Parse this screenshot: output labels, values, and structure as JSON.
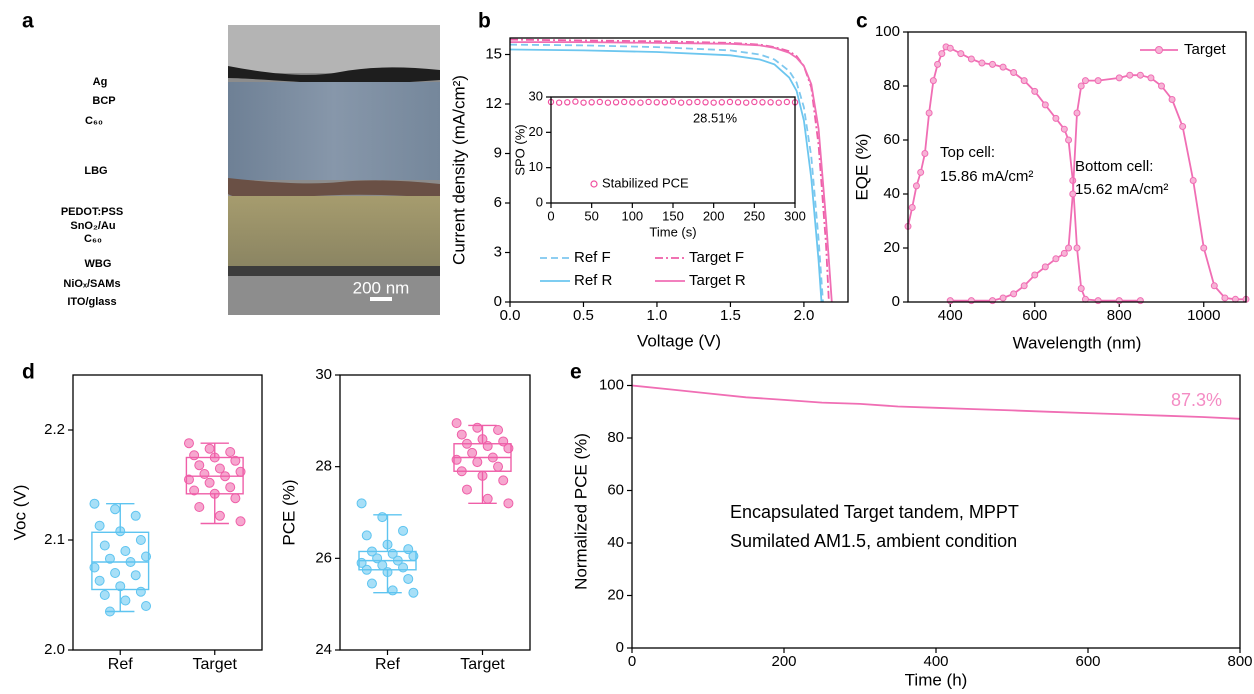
{
  "panel_a": {
    "panel": "a",
    "layers": [
      "Ag",
      "BCP",
      "C₆₀",
      "LBG",
      "PEDOT:PSS",
      "SnO₂/Au",
      "C₆₀",
      "WBG",
      "NiOₓ/SAMs",
      "ITO/glass"
    ],
    "scale_bar": "200 nm"
  },
  "chart_data": [
    {
      "panel": "b",
      "type": "line",
      "x_label": "Voltage (V)",
      "y_label": "Current density (mA/cm²)",
      "xlim": [
        0,
        2.3
      ],
      "ylim": [
        0,
        16
      ],
      "xticks": [
        {
          "value": 0,
          "label": "0.0"
        },
        0.5,
        {
          "value": 1,
          "label": "1.0"
        },
        1.5,
        {
          "value": 2,
          "label": "2.0"
        }
      ],
      "yticks": [
        0,
        3,
        6,
        9,
        12,
        15
      ],
      "legend": "lower-left",
      "series": [
        {
          "name": "Ref F",
          "color": "#7ec8ef",
          "dash": "dashed",
          "x": [
            0,
            0.5,
            1,
            1.5,
            1.7,
            1.8,
            1.9,
            1.95,
            2,
            2.05,
            2.1,
            2.13
          ],
          "values": [
            15.6,
            15.55,
            15.45,
            15.25,
            15,
            14.7,
            14,
            13.3,
            11.8,
            8.8,
            3.8,
            0
          ]
        },
        {
          "name": "Ref R",
          "color": "#6cc6ef",
          "dash": "solid",
          "x": [
            0,
            0.5,
            1,
            1.5,
            1.7,
            1.8,
            1.9,
            1.95,
            2,
            2.05,
            2.1,
            2.12
          ],
          "values": [
            15.3,
            15.25,
            15.15,
            14.95,
            14.7,
            14.4,
            13.6,
            12.8,
            11,
            7.5,
            2.5,
            0
          ]
        },
        {
          "name": "Target F",
          "color": "#ee5fa8",
          "dash": "dash-dot",
          "x": [
            0,
            0.5,
            1,
            1.5,
            1.7,
            1.8,
            1.9,
            1.95,
            2,
            2.05,
            2.1,
            2.15,
            2.17
          ],
          "values": [
            15.9,
            15.85,
            15.8,
            15.7,
            15.6,
            15.45,
            15.2,
            14.9,
            14.3,
            13,
            9.5,
            3.5,
            0
          ]
        },
        {
          "name": "Target R",
          "color": "#f06eb4",
          "dash": "solid",
          "x": [
            0,
            0.5,
            1,
            1.5,
            1.7,
            1.8,
            1.9,
            1.95,
            2,
            2.05,
            2.1,
            2.15,
            2.19
          ],
          "values": [
            15.75,
            15.75,
            15.7,
            15.65,
            15.55,
            15.4,
            15.1,
            14.8,
            14.3,
            13.2,
            10.5,
            5,
            0
          ]
        }
      ]
    },
    {
      "type": "scatter",
      "x_label": "Time (s)",
      "y_label": "SPO (%)",
      "xlim": [
        0,
        300
      ],
      "ylim": [
        0,
        30
      ],
      "xticks": [
        0,
        50,
        100,
        150,
        200,
        250,
        300
      ],
      "yticks": [
        0,
        10,
        20,
        30
      ],
      "annotation": "28.51%",
      "series": [
        {
          "name": "Stabilized PCE",
          "color": "#f0509f",
          "x": [
            0,
            10,
            20,
            30,
            40,
            50,
            60,
            70,
            80,
            90,
            100,
            110,
            120,
            130,
            140,
            150,
            160,
            170,
            180,
            190,
            200,
            210,
            220,
            230,
            240,
            250,
            260,
            270,
            280,
            290,
            300
          ],
          "values": [
            28.6,
            28.4,
            28.5,
            28.7,
            28.4,
            28.5,
            28.6,
            28.4,
            28.5,
            28.6,
            28.5,
            28.4,
            28.6,
            28.5,
            28.5,
            28.7,
            28.4,
            28.5,
            28.6,
            28.5,
            28.4,
            28.5,
            28.6,
            28.5,
            28.4,
            28.6,
            28.5,
            28.5,
            28.4,
            28.6,
            28.5
          ]
        }
      ]
    },
    {
      "panel": "c",
      "type": "line",
      "x_label": "Wavelength (nm)",
      "y_label": "EQE (%)",
      "xlim": [
        300,
        1100
      ],
      "ylim": [
        0,
        100
      ],
      "xticks": [
        400,
        600,
        800,
        1000
      ],
      "yticks": [
        0,
        20,
        40,
        60,
        80,
        100
      ],
      "legend": "upper-right",
      "marker": "circle",
      "annotations": [
        "Top cell:",
        "15.86 mA/cm²",
        "Bottom cell:",
        "15.62 mA/cm²"
      ],
      "series": [
        {
          "name": "Target",
          "color": "#f06eb4",
          "x": [
            300,
            310,
            320,
            330,
            340,
            350,
            360,
            370,
            380,
            390,
            400,
            425,
            450,
            475,
            500,
            525,
            550,
            575,
            600,
            625,
            650,
            670,
            680,
            690,
            700,
            710,
            720,
            750,
            800,
            850
          ],
          "values": [
            28,
            35,
            43,
            48,
            55,
            70,
            82,
            88,
            92,
            94.5,
            94,
            92,
            90,
            88.5,
            88,
            87,
            85,
            82,
            78,
            73,
            68,
            64,
            60,
            45,
            20,
            5,
            1,
            0.5,
            0.5,
            0.5
          ]
        },
        {
          "color": "#f06eb4",
          "x": [
            400,
            450,
            500,
            525,
            550,
            575,
            600,
            625,
            650,
            670,
            680,
            690,
            700,
            710,
            720,
            750,
            800,
            825,
            850,
            875,
            900,
            925,
            950,
            975,
            1000,
            1025,
            1050,
            1075,
            1100
          ],
          "values": [
            0.5,
            0.5,
            0.5,
            1.5,
            3,
            6,
            10,
            13,
            16,
            18,
            20,
            40,
            70,
            80,
            82,
            82,
            83,
            84,
            84,
            83,
            80,
            75,
            65,
            45,
            20,
            6,
            1.5,
            1,
            1
          ]
        }
      ]
    },
    {
      "panel": "d",
      "type": "box",
      "y_label": "Voc (V)",
      "categories": [
        "Ref",
        "Target"
      ],
      "ylim": [
        2,
        2.25
      ],
      "yticks": [
        {
          "value": 2,
          "label": "2.0"
        },
        2.1,
        2.2
      ],
      "boxes": [
        {
          "color": "#5ec4f0",
          "stats": {
            "min": 2.035,
            "q1": 2.055,
            "median": 2.08,
            "q3": 2.107,
            "max": 2.133
          },
          "points": [
            2.133,
            2.128,
            2.122,
            2.113,
            2.108,
            2.1,
            2.095,
            2.09,
            2.085,
            2.083,
            2.08,
            2.075,
            2.07,
            2.068,
            2.063,
            2.058,
            2.053,
            2.05,
            2.045,
            2.04,
            2.035
          ]
        },
        {
          "color": "#ef5fa8",
          "stats": {
            "min": 2.115,
            "q1": 2.142,
            "median": 2.158,
            "q3": 2.175,
            "max": 2.188
          },
          "points": [
            2.188,
            2.183,
            2.18,
            2.177,
            2.175,
            2.172,
            2.168,
            2.165,
            2.162,
            2.16,
            2.158,
            2.155,
            2.152,
            2.148,
            2.145,
            2.142,
            2.138,
            2.13,
            2.122,
            2.117
          ]
        }
      ]
    },
    {
      "type": "box",
      "y_label": "PCE (%)",
      "categories": [
        "Ref",
        "Target"
      ],
      "ylim": [
        24,
        30
      ],
      "yticks": [
        24,
        26,
        28,
        30
      ],
      "boxes": [
        {
          "color": "#5ec4f0",
          "stats": {
            "min": 25.25,
            "q1": 25.75,
            "median": 25.95,
            "q3": 26.15,
            "max": 26.95
          },
          "points": [
            27.2,
            26.9,
            26.6,
            26.5,
            26.3,
            26.2,
            26.15,
            26.1,
            26.05,
            26,
            25.95,
            25.9,
            25.85,
            25.8,
            25.75,
            25.7,
            25.55,
            25.45,
            25.3,
            25.25
          ]
        },
        {
          "color": "#ef5fa8",
          "stats": {
            "min": 27.2,
            "q1": 27.9,
            "median": 28.2,
            "q3": 28.5,
            "max": 28.9
          },
          "points": [
            28.95,
            28.85,
            28.8,
            28.7,
            28.6,
            28.55,
            28.5,
            28.45,
            28.4,
            28.3,
            28.2,
            28.15,
            28.1,
            28,
            27.9,
            27.8,
            27.7,
            27.5,
            27.3,
            27.2
          ]
        }
      ]
    },
    {
      "panel": "e",
      "type": "line",
      "x_label": "Time (h)",
      "y_label": "Normalized PCE (%)",
      "xlim": [
        0,
        800
      ],
      "ylim": [
        0,
        104
      ],
      "xticks": [
        0,
        200,
        400,
        600,
        800
      ],
      "yticks": [
        0,
        20,
        40,
        60,
        80,
        100
      ],
      "annotations": [
        "87.3%",
        "Encapsulated Target tandem, MPPT",
        "Sumilated AM1.5, ambient condition"
      ],
      "x": [
        0,
        50,
        100,
        150,
        200,
        250,
        300,
        350,
        400,
        450,
        500,
        550,
        600,
        650,
        700,
        750,
        800
      ],
      "series": [
        {
          "color": "#f06eb4",
          "values": [
            100,
            98.5,
            97,
            95.5,
            94.5,
            93.5,
            93,
            92,
            91.5,
            91,
            90.5,
            90,
            89.5,
            89,
            88.5,
            88,
            87.3
          ]
        }
      ]
    }
  ]
}
